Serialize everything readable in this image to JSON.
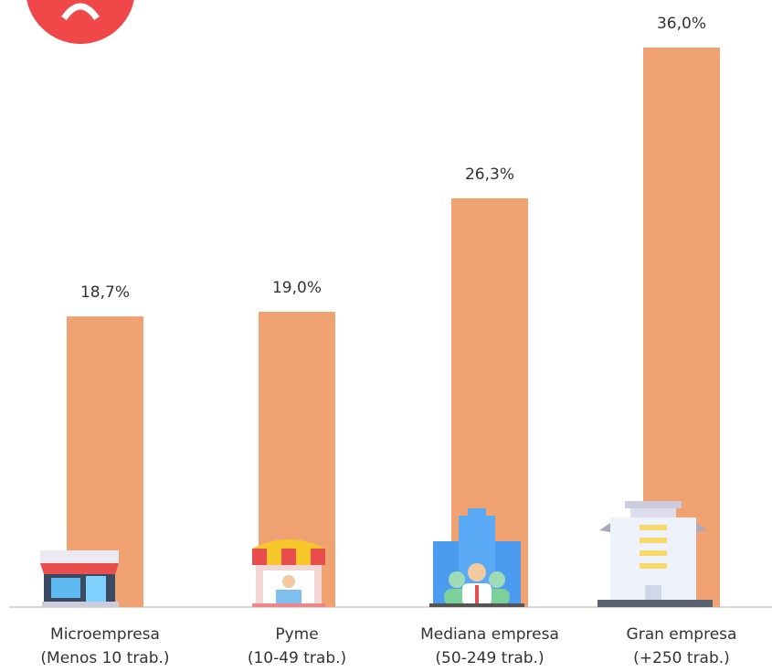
{
  "chart_data": {
    "type": "bar",
    "categories": [
      [
        "Microempresa",
        "(Menos 10 trab.)"
      ],
      [
        "Pyme",
        "(10-49 trab.)"
      ],
      [
        "Mediana empresa",
        "(50-249 trab.)"
      ],
      [
        "Gran empresa",
        "(+250 trab.)"
      ]
    ],
    "values": [
      18.7,
      19.0,
      26.3,
      36.0
    ],
    "value_labels": [
      "18,7%",
      "19,0%",
      "26,3%",
      "36,0%"
    ],
    "color": "#f0a272"
  }
}
